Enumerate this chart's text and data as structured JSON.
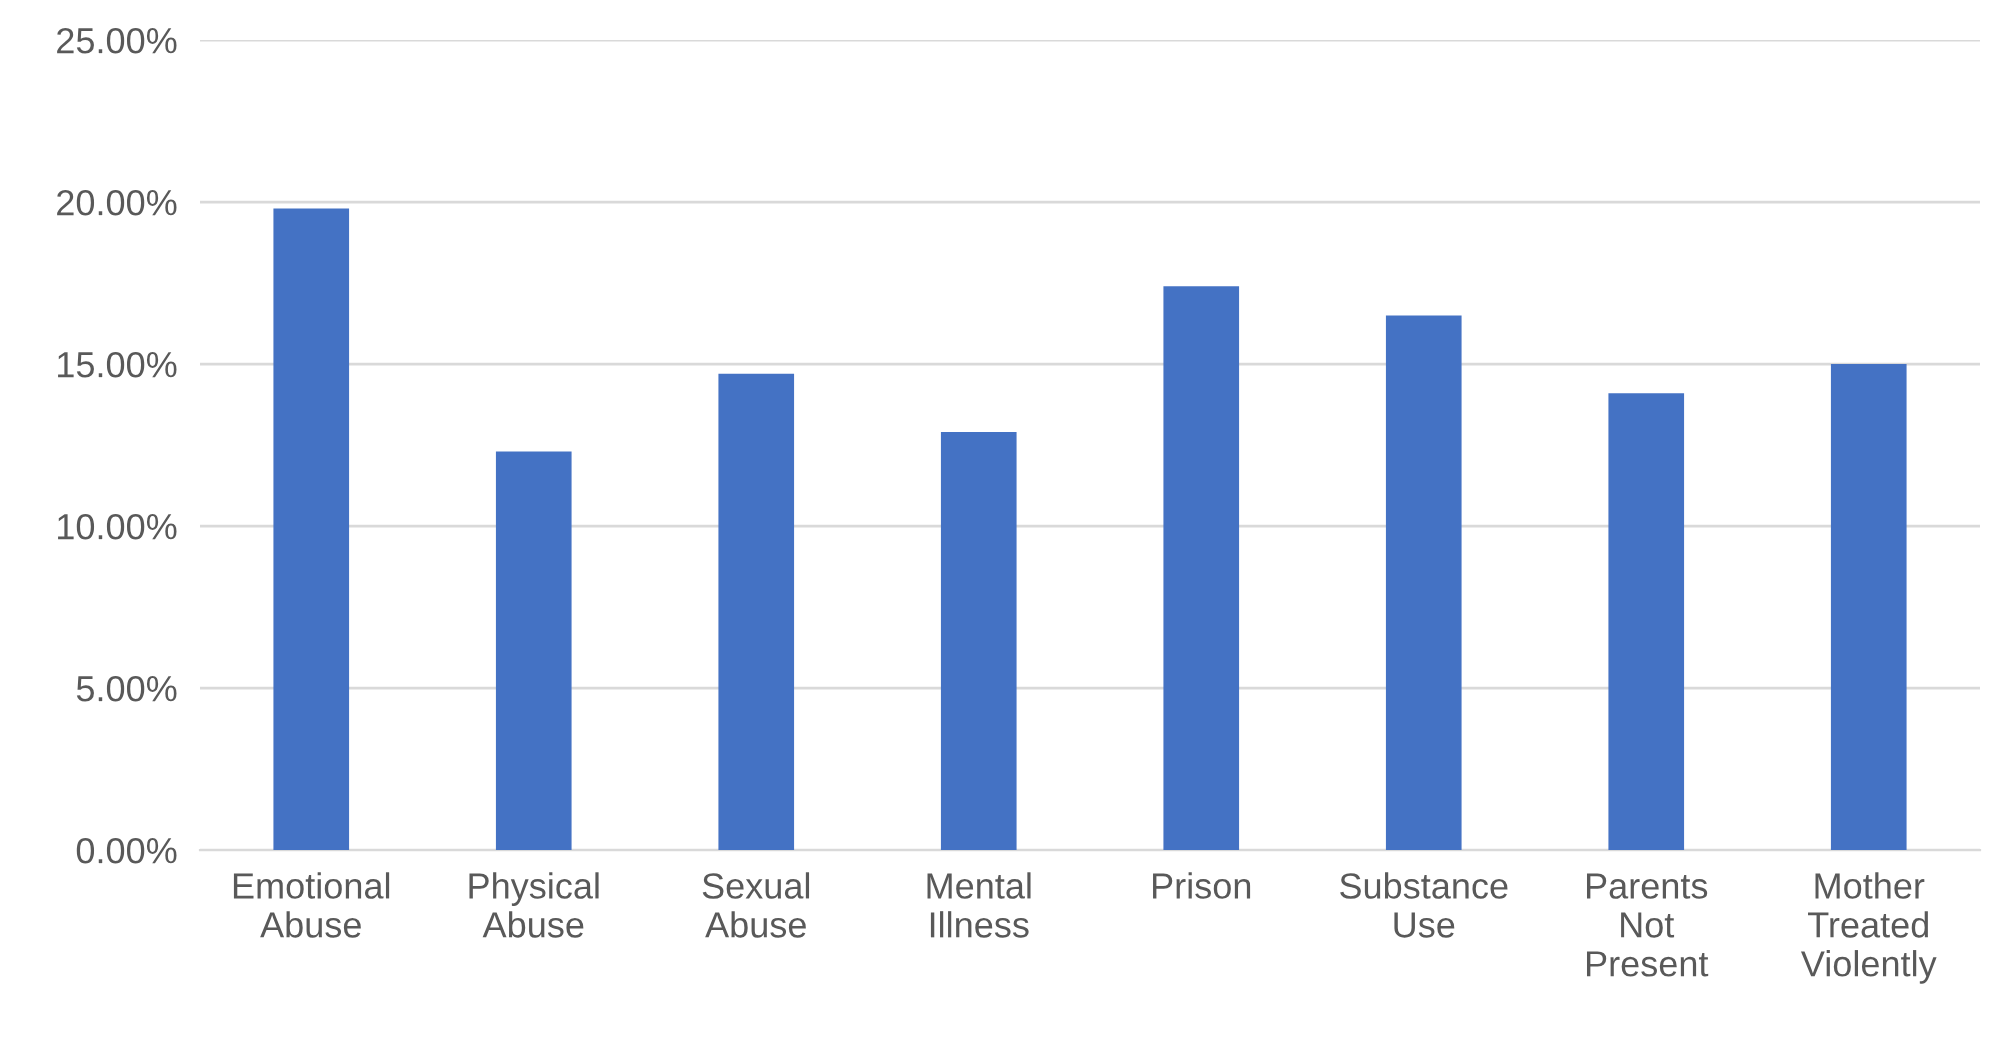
{
  "chart_data": {
    "type": "bar",
    "categories": [
      "Emotional\nAbuse",
      "Physical\nAbuse",
      "Sexual\nAbuse",
      "Mental\nIllness",
      "Prison",
      "Substance\nUse",
      "Parents\nNot\nPresent",
      "Mother\nTreated\nViolently"
    ],
    "values": [
      19.8,
      12.3,
      14.7,
      12.9,
      17.4,
      16.5,
      14.1,
      15.0
    ],
    "color": "#4472c4",
    "ylim": [
      0,
      25
    ],
    "yticks": [
      {
        "value": 0,
        "label": "0.00%"
      },
      {
        "value": 5,
        "label": "5.00%"
      },
      {
        "value": 10,
        "label": "10.00%"
      },
      {
        "value": 15,
        "label": "15.00%"
      },
      {
        "value": 20,
        "label": "20.00%"
      },
      {
        "value": 25,
        "label": "25.00%"
      }
    ],
    "grid": "y"
  }
}
